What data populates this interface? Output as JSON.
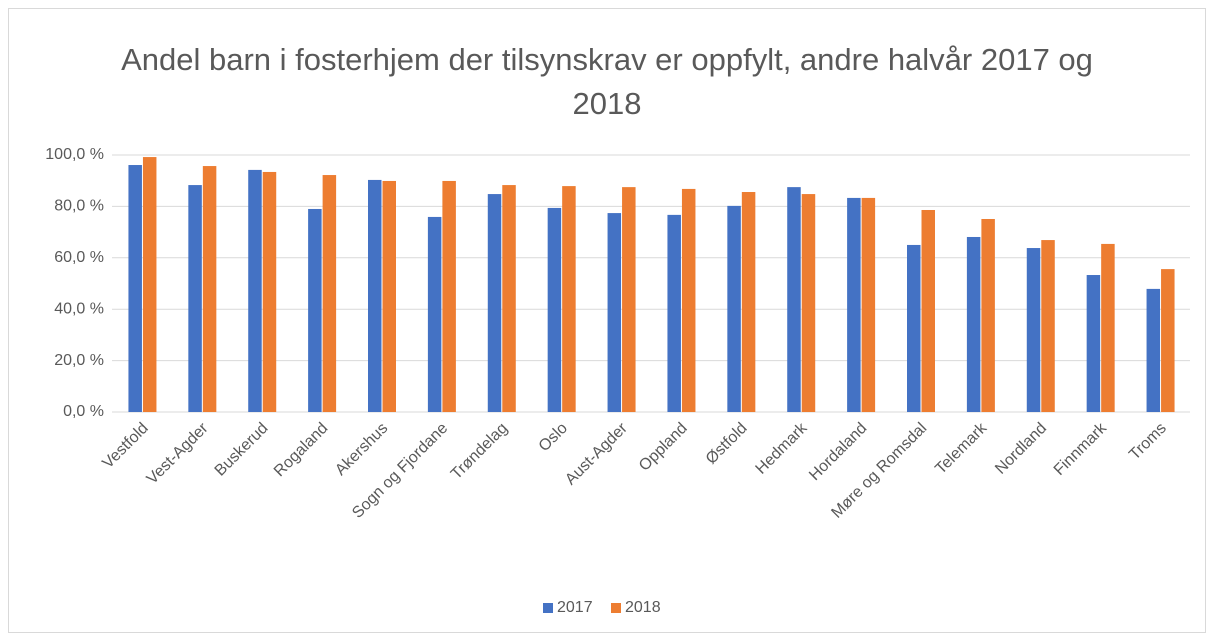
{
  "chart_data": {
    "type": "bar",
    "title": "Andel barn i fosterhjem der tilsynskrav er oppfylt, andre halvår 2017 og 2018",
    "categories": [
      "Vestfold",
      "Vest-Agder",
      "Buskerud",
      "Rogaland",
      "Akershus",
      "Sogn og Fjordane",
      "Trøndelag",
      "Oslo",
      "Aust-Agder",
      "Oppland",
      "Østfold",
      "Hedmark",
      "Hordaland",
      "Møre og Romsdal",
      "Telemark",
      "Nordland",
      "Finnmark",
      "Troms"
    ],
    "series": [
      {
        "name": "2017",
        "color": "#4472c4",
        "values": [
          96.1,
          88.3,
          94.2,
          79.0,
          90.3,
          75.9,
          84.8,
          79.4,
          77.4,
          76.7,
          80.2,
          87.5,
          83.3,
          65.0,
          68.1,
          63.8,
          53.3,
          47.9
        ]
      },
      {
        "name": "2018",
        "color": "#ed7d31",
        "values": [
          99.2,
          95.7,
          93.4,
          92.2,
          89.9,
          89.9,
          88.3,
          87.9,
          87.5,
          86.8,
          85.6,
          84.8,
          83.3,
          78.6,
          75.1,
          66.9,
          65.4,
          55.6
        ]
      }
    ],
    "ylim": [
      0,
      100
    ],
    "yticks": [
      {
        "value": 0,
        "label": "0,0 %"
      },
      {
        "value": 20,
        "label": "20,0 %"
      },
      {
        "value": 40,
        "label": "40,0 %"
      },
      {
        "value": 60,
        "label": "60,0 %"
      },
      {
        "value": 80,
        "label": "80,0 %"
      },
      {
        "value": 100,
        "label": "100,0 %"
      }
    ],
    "grid": true,
    "legend": "bottom"
  }
}
